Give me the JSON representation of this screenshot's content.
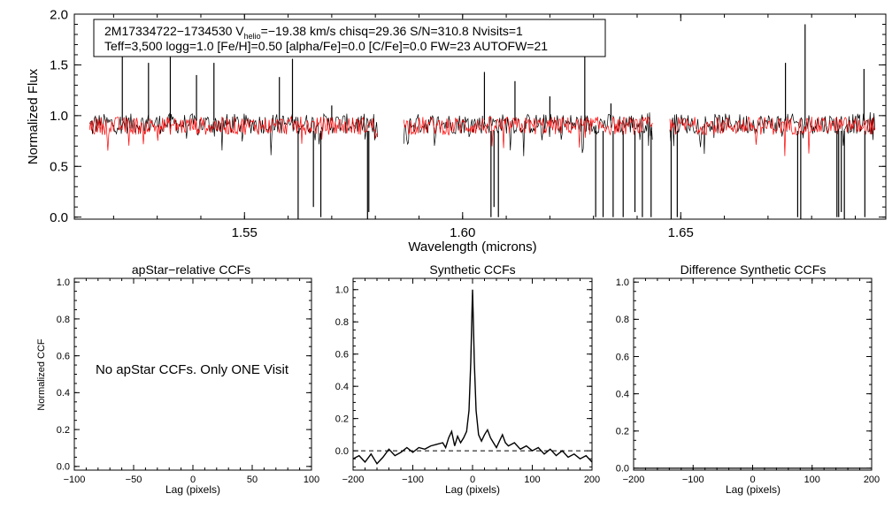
{
  "chart_data": [
    {
      "panel": "spectrum",
      "type": "line",
      "xlabel": "Wavelength (microns)",
      "ylabel": "Normalized Flux",
      "xlim": [
        1.511,
        1.697
      ],
      "ylim": [
        -0.02,
        2.0
      ],
      "x_ticks": [
        1.55,
        1.6,
        1.65
      ],
      "x_tick_labels": [
        "1.55",
        "1.60",
        "1.65"
      ],
      "y_ticks": [
        0.0,
        0.5,
        1.0,
        1.5,
        2.0
      ],
      "y_tick_labels": [
        "0.0",
        "0.5",
        "1.0",
        "1.5",
        "2.0"
      ],
      "segments": [
        [
          1.5145,
          1.5805
        ],
        [
          1.5865,
          1.6435
        ],
        [
          1.6475,
          1.6945
        ]
      ],
      "series": [
        {
          "name": "observed",
          "color": "#000000",
          "continuum": 0.92,
          "noise": 0.1
        },
        {
          "name": "model",
          "color": "#ff0000",
          "continuum": 0.9,
          "noise": 0.09
        }
      ],
      "emission_spikes": [
        {
          "x": 1.522,
          "y": 1.65
        },
        {
          "x": 1.528,
          "y": 1.52
        },
        {
          "x": 1.533,
          "y": 1.75
        },
        {
          "x": 1.539,
          "y": 1.4
        },
        {
          "x": 1.543,
          "y": 1.52
        },
        {
          "x": 1.558,
          "y": 1.38
        },
        {
          "x": 1.561,
          "y": 1.56
        },
        {
          "x": 1.57,
          "y": 1.1
        },
        {
          "x": 1.605,
          "y": 1.43
        },
        {
          "x": 1.612,
          "y": 1.34
        },
        {
          "x": 1.62,
          "y": 1.19
        },
        {
          "x": 1.628,
          "y": 1.58
        },
        {
          "x": 1.634,
          "y": 1.12
        },
        {
          "x": 1.674,
          "y": 1.52
        },
        {
          "x": 1.6785,
          "y": 1.9
        },
        {
          "x": 1.692,
          "y": 1.46
        }
      ],
      "absorption_dips": [
        {
          "x": 1.5623,
          "y": -0.02
        },
        {
          "x": 1.5658,
          "y": 0.1
        },
        {
          "x": 1.5675,
          "y": 0.0
        },
        {
          "x": 1.5782,
          "y": -0.02
        },
        {
          "x": 1.5785,
          "y": 0.05
        },
        {
          "x": 1.6065,
          "y": 0.0
        },
        {
          "x": 1.6072,
          "y": 0.1
        },
        {
          "x": 1.6082,
          "y": 0.0
        },
        {
          "x": 1.6305,
          "y": 0.0
        },
        {
          "x": 1.6322,
          "y": 0.0
        },
        {
          "x": 1.6345,
          "y": 0.0
        },
        {
          "x": 1.6368,
          "y": 0.0
        },
        {
          "x": 1.6395,
          "y": 0.05
        },
        {
          "x": 1.6412,
          "y": 0.0
        },
        {
          "x": 1.6432,
          "y": 0.0
        },
        {
          "x": 1.6478,
          "y": -0.02
        },
        {
          "x": 1.6492,
          "y": 0.0
        },
        {
          "x": 1.6768,
          "y": 0.0
        },
        {
          "x": 1.6775,
          "y": -0.02
        },
        {
          "x": 1.6858,
          "y": 0.0
        },
        {
          "x": 1.6862,
          "y": 0.0
        },
        {
          "x": 1.6868,
          "y": 0.05
        },
        {
          "x": 1.6875,
          "y": -0.02
        },
        {
          "x": 1.6922,
          "y": 0.0
        }
      ],
      "annotation": {
        "line1_parts": [
          "2M17334722−1734530  V",
          "helio",
          "=−19.38 km/s  chisq=29.36  S/N=310.8  Nvisits=1"
        ],
        "line2": "Teff=3,500 logg=1.0 [Fe/H]=0.50 [alpha/Fe]=0.0 [C/Fe]=0.0 FW=23 AUTOFW=21"
      }
    },
    {
      "panel": "apstar_ccf",
      "type": "line",
      "title": "apStar−relative CCFs",
      "xlabel": "Lag (pixels)",
      "ylabel": "Normalized CCF",
      "xlim": [
        -100,
        100
      ],
      "ylim": [
        -0.02,
        1.02
      ],
      "x_ticks": [
        -100,
        -50,
        0,
        50,
        100
      ],
      "x_tick_labels": [
        "−100",
        "−50",
        "0",
        "50",
        "100"
      ],
      "y_ticks": [
        0.0,
        0.2,
        0.4,
        0.6,
        0.8,
        1.0
      ],
      "y_tick_labels": [
        "0.0",
        "0.2",
        "0.4",
        "0.6",
        "0.8",
        "1.0"
      ],
      "message": "No apStar CCFs.  Only ONE Visit",
      "series": []
    },
    {
      "panel": "synthetic_ccf",
      "type": "line",
      "title": "Synthetic CCFs",
      "xlabel": "Lag (pixels)",
      "ylabel": "",
      "xlim": [
        -200,
        200
      ],
      "ylim": [
        -0.12,
        1.07
      ],
      "x_ticks": [
        -200,
        -100,
        0,
        100,
        200
      ],
      "x_tick_labels": [
        "−200",
        "−100",
        "0",
        "100",
        "200"
      ],
      "y_ticks": [
        0.0,
        0.2,
        0.4,
        0.6,
        0.8,
        1.0
      ],
      "y_tick_labels": [
        "0.0",
        "0.2",
        "0.4",
        "0.6",
        "0.8",
        "1.0"
      ],
      "reference_line": {
        "y": 0.0,
        "style": "dashed"
      },
      "series": [
        {
          "name": "ccf",
          "color": "#000000",
          "x": [
            -200,
            -190,
            -180,
            -170,
            -160,
            -150,
            -140,
            -130,
            -120,
            -110,
            -100,
            -90,
            -80,
            -70,
            -60,
            -50,
            -45,
            -40,
            -35,
            -30,
            -25,
            -20,
            -15,
            -10,
            -6,
            -3,
            -1,
            0,
            1,
            3,
            6,
            10,
            15,
            20,
            25,
            30,
            35,
            40,
            45,
            50,
            55,
            60,
            70,
            80,
            90,
            100,
            110,
            120,
            130,
            140,
            150,
            160,
            170,
            180,
            190,
            200
          ],
          "y": [
            -0.05,
            -0.03,
            -0.07,
            -0.02,
            -0.08,
            -0.04,
            0.01,
            -0.03,
            -0.01,
            0.02,
            -0.01,
            0.02,
            0.01,
            0.03,
            0.04,
            0.05,
            0.02,
            0.08,
            0.12,
            0.03,
            0.09,
            0.05,
            0.08,
            0.12,
            0.25,
            0.55,
            0.85,
            1.0,
            0.85,
            0.55,
            0.25,
            0.1,
            0.06,
            0.1,
            0.13,
            0.08,
            0.05,
            0.02,
            0.06,
            0.1,
            0.05,
            0.03,
            0.05,
            0.01,
            0.03,
            0.0,
            0.02,
            -0.02,
            0.01,
            -0.03,
            0.0,
            -0.04,
            -0.02,
            -0.05,
            -0.03,
            -0.07
          ]
        }
      ]
    },
    {
      "panel": "difference_ccf",
      "type": "line",
      "title": "Difference Synthetic CCFs",
      "xlabel": "Lag (pixels)",
      "ylabel": "",
      "xlim": [
        -200,
        200
      ],
      "ylim": [
        -0.01,
        1.02
      ],
      "x_ticks": [
        -200,
        -100,
        0,
        100,
        200
      ],
      "x_tick_labels": [
        "−200",
        "−100",
        "0",
        "100",
        "200"
      ],
      "y_ticks": [
        0.0,
        0.2,
        0.4,
        0.6,
        0.8,
        1.0
      ],
      "y_tick_labels": [
        "0.0",
        "0.2",
        "0.4",
        "0.6",
        "0.8",
        "1.0"
      ],
      "series": [
        {
          "name": "difference",
          "color": "#000000",
          "x": [
            -200,
            200
          ],
          "y": [
            0.0,
            0.0
          ]
        }
      ]
    }
  ]
}
